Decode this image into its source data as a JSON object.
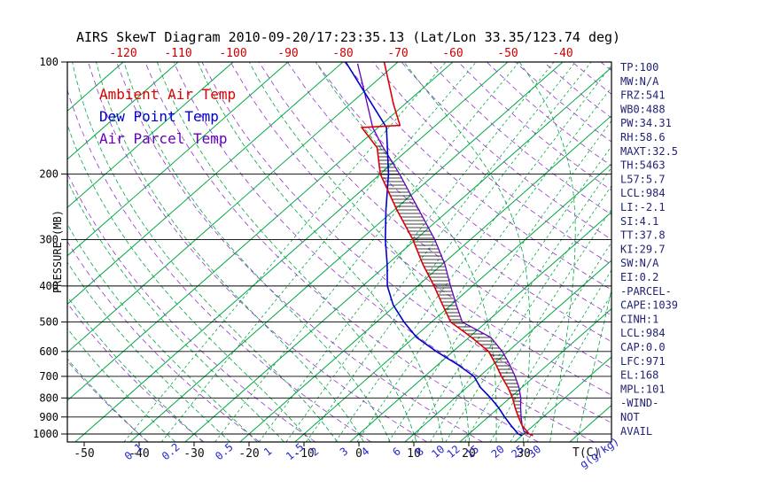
{
  "title": "AIRS SkewT Diagram 2010-09-20/17:23:35.13 (Lat/Lon 33.35/123.74 deg)",
  "legend": {
    "ambient": {
      "label": "Ambient Air Temp",
      "color": "#dd0000"
    },
    "dewpoint": {
      "label": "Dew Point Temp",
      "color": "#0000cc"
    },
    "parcel": {
      "label": "Air Parcel Temp",
      "color": "#6600bb"
    }
  },
  "y_axis": {
    "label": "PRESSURE (MB)",
    "ticks": [
      100,
      200,
      300,
      400,
      500,
      600,
      700,
      800,
      900,
      1000
    ]
  },
  "x_axis_top": {
    "color": "#cc0000",
    "ticks": [
      -120,
      -110,
      -100,
      -90,
      -80,
      -70,
      -60,
      -50,
      -40
    ]
  },
  "x_axis_bottom": {
    "label": "T(C)",
    "color": "#111111",
    "ticks": [
      -50,
      -40,
      -30,
      -20,
      -10,
      0,
      10,
      20,
      30
    ]
  },
  "mixing_ratio_axis": {
    "label": "g(g/kg)",
    "color": "#2222cc",
    "ticks": [
      0.1,
      0.2,
      0.5,
      1,
      1.5,
      2,
      3,
      4,
      6,
      8,
      10,
      12,
      15,
      20,
      25,
      30
    ]
  },
  "stats_panel": {
    "color": "#222277",
    "lines": [
      "TP:100",
      "MW:N/A",
      "FRZ:541",
      "WB0:488",
      "PW:34.31",
      "RH:58.6",
      "MAXT:32.5",
      "TH:5463",
      "L57:5.7",
      "LCL:984",
      "LI:-2.1",
      "SI:4.1",
      "TT:37.8",
      "KI:29.7",
      "SW:N/A",
      "EI:0.2",
      "-PARCEL-",
      "CAPE:1039",
      "CINH:1",
      "LCL:984",
      "CAP:0.0",
      "LFC:971",
      "EL:168",
      "MPL:101",
      "-WIND-",
      "NOT",
      "AVAIL"
    ]
  },
  "chart_data": {
    "type": "line",
    "title": "AIRS SkewT Diagram 2010-09-20/17:23:35.13 (Lat/Lon 33.35/123.74 deg)",
    "x_label": "Temperature (C)",
    "y_label": "Pressure (MB)",
    "y_scale": "log",
    "y_range_mb": [
      100,
      1050
    ],
    "x_range_at_1000mb": [
      -50,
      40
    ],
    "skew": "45deg",
    "legend_position": "top-left-inside",
    "series": [
      {
        "name": "Ambient Air Temp",
        "color": "#dd0000",
        "points_mb_c": [
          [
            1010,
            32
          ],
          [
            1000,
            31
          ],
          [
            950,
            28
          ],
          [
            900,
            25.5
          ],
          [
            850,
            23
          ],
          [
            800,
            20.5
          ],
          [
            750,
            17.5
          ],
          [
            700,
            14
          ],
          [
            650,
            10.5
          ],
          [
            600,
            6.5
          ],
          [
            550,
            0.5
          ],
          [
            500,
            -6.5
          ],
          [
            450,
            -11.5
          ],
          [
            400,
            -17
          ],
          [
            350,
            -23.5
          ],
          [
            300,
            -30.5
          ],
          [
            250,
            -39.5
          ],
          [
            200,
            -50
          ],
          [
            170,
            -56
          ],
          [
            150,
            -63
          ],
          [
            148,
            -56.5
          ],
          [
            130,
            -62
          ],
          [
            100,
            -72.5
          ]
        ]
      },
      {
        "name": "Dew Point Temp",
        "color": "#0000cc",
        "points_mb_c": [
          [
            1010,
            30
          ],
          [
            1000,
            29
          ],
          [
            950,
            26
          ],
          [
            900,
            23
          ],
          [
            850,
            20
          ],
          [
            800,
            16.5
          ],
          [
            750,
            12.5
          ],
          [
            700,
            9
          ],
          [
            650,
            3.5
          ],
          [
            600,
            -3
          ],
          [
            550,
            -9.5
          ],
          [
            500,
            -15
          ],
          [
            450,
            -20.5
          ],
          [
            400,
            -25.5
          ],
          [
            350,
            -30
          ],
          [
            300,
            -35.5
          ],
          [
            250,
            -41.5
          ],
          [
            200,
            -48.5
          ],
          [
            150,
            -58.5
          ],
          [
            100,
            -79.5
          ]
        ]
      },
      {
        "name": "Air Parcel Temp",
        "color": "#6600bb",
        "points_mb_c": [
          [
            1010,
            32
          ],
          [
            984,
            29.5
          ],
          [
            950,
            28
          ],
          [
            900,
            26
          ],
          [
            850,
            24
          ],
          [
            800,
            22
          ],
          [
            750,
            19.5
          ],
          [
            700,
            16.5
          ],
          [
            650,
            13
          ],
          [
            600,
            9
          ],
          [
            550,
            4
          ],
          [
            500,
            -4.4
          ],
          [
            450,
            -9
          ],
          [
            400,
            -14
          ],
          [
            350,
            -19.5
          ],
          [
            300,
            -26.5
          ],
          [
            250,
            -35.5
          ],
          [
            200,
            -46.5
          ],
          [
            168,
            -55.5
          ],
          [
            150,
            -61
          ],
          [
            120,
            -70
          ],
          [
            101,
            -77
          ]
        ]
      }
    ],
    "cape_hatch": {
      "top_mb": 168,
      "bottom_mb": 950,
      "style": "horizontal-black-lines"
    },
    "grid": {
      "isotherm_color": "#00a844",
      "dry_adiabat_color": "#9933cc",
      "isotherms_c": {
        "from": -160,
        "to": 40,
        "step": 10
      },
      "dry_adiabats_c": {
        "from": -40,
        "to": 220,
        "step": 10
      },
      "moist_adiabats_c": {
        "from": -40,
        "to": 40,
        "step": 5
      },
      "mixing_ratio_gkg": [
        0.1,
        0.2,
        0.5,
        1,
        1.5,
        2,
        3,
        4,
        6,
        8,
        10,
        12,
        15,
        20,
        25,
        30
      ],
      "pressure_lines_mb": [
        100,
        200,
        300,
        400,
        500,
        600,
        700,
        800,
        900,
        1000
      ]
    }
  }
}
